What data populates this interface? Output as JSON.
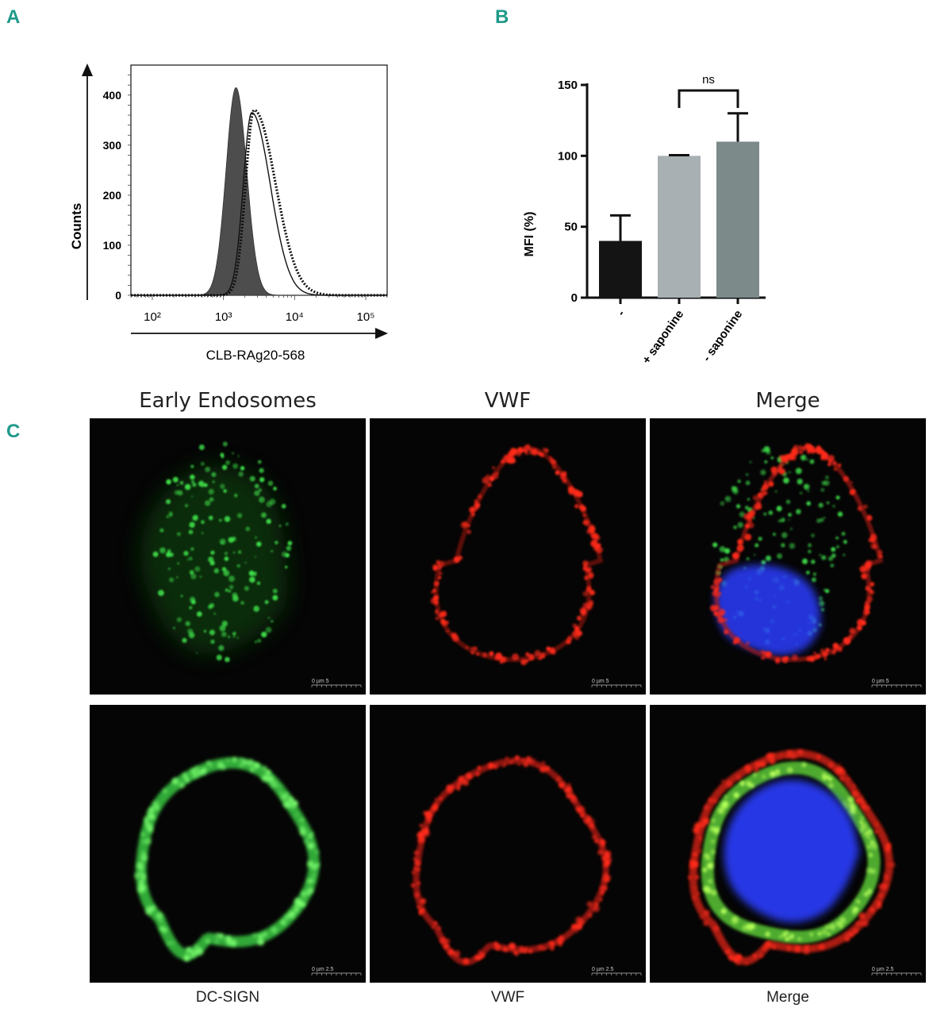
{
  "panels": {
    "a": "A",
    "b": "B",
    "c": "C"
  },
  "chart_data": [
    {
      "type": "area",
      "panel": "A",
      "xlabel": "CLB-RAg20-568",
      "ylabel": "Counts",
      "x_scale": "log",
      "xlim": [
        50,
        200000
      ],
      "ylim": [
        0,
        460
      ],
      "x_ticks": [
        100,
        1000,
        10000,
        100000
      ],
      "x_tick_labels": [
        "10²",
        "10³",
        "10⁴",
        "10⁵"
      ],
      "y_ticks": [
        0,
        100,
        200,
        300,
        400
      ],
      "y_tick_labels": [
        "0",
        "100",
        "200",
        "300",
        "400"
      ],
      "series": [
        {
          "style": "filled-grey",
          "peak_x": 1500,
          "peak_y": 415,
          "sigma_left": 0.14,
          "sigma_right": 0.15
        },
        {
          "style": "thin-line",
          "peak_x": 2500,
          "peak_y": 365,
          "sigma_left": 0.12,
          "sigma_right": 0.26
        },
        {
          "style": "dotted-line",
          "peak_x": 2700,
          "peak_y": 370,
          "sigma_left": 0.12,
          "sigma_right": 0.3
        }
      ],
      "colors": {
        "filled": "#4d4d4d",
        "line": "#111111"
      }
    },
    {
      "type": "bar",
      "panel": "B",
      "ylabel": "MFI (%)",
      "categories": [
        "-",
        "+ saponine",
        "- saponine"
      ],
      "values": [
        40,
        100,
        110
      ],
      "errors": [
        18,
        0.5,
        20
      ],
      "ylim": [
        0,
        150
      ],
      "y_ticks": [
        0,
        50,
        100,
        150
      ],
      "colors": [
        "#141414",
        "#a9b0b3",
        "#7c8a89"
      ],
      "annotation": {
        "text": "ns",
        "between": [
          1,
          2
        ]
      }
    }
  ],
  "micrographs": {
    "row1": {
      "headers": [
        "Early Endosomes",
        "VWF",
        "Merge"
      ],
      "scale_label": "0     µm     5"
    },
    "row2": {
      "footers": [
        "DC-SIGN",
        "VWF",
        "Merge"
      ],
      "scale_label": "0     µm   2.5"
    },
    "colors": {
      "green": "#3fe04a",
      "red": "#ff2a1a",
      "blue": "#2a3cff"
    }
  }
}
